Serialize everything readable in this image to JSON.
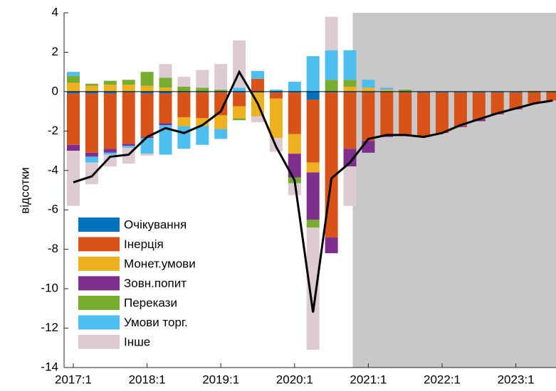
{
  "chart_data": {
    "type": "stacked_bar_line",
    "y_label": "відсотки",
    "categories": [
      "2017:1",
      null,
      null,
      null,
      "2018:1",
      null,
      null,
      null,
      "2019:1",
      null,
      null,
      null,
      "2020:1",
      null,
      null,
      null,
      "2021:1",
      null,
      null,
      null,
      "2022:1",
      null,
      null,
      null,
      "2023:1",
      null,
      null
    ],
    "series": [
      {
        "name": "Очікування",
        "color": "#0072bd",
        "values": [
          -0.1,
          -0.1,
          -0.1,
          -0.05,
          -0.1,
          -0.1,
          -0.05,
          -0.05,
          -0.05,
          -0.05,
          -0.05,
          -0.05,
          -0.05,
          -0.4,
          -0.05,
          -0.05,
          -0.05,
          -0.05,
          -0.05,
          -0.05,
          -0.05,
          -0.05,
          -0.05,
          -0.05,
          -0.05,
          -0.05,
          -0.05
        ]
      },
      {
        "name": "Інерція",
        "color": "#d95319",
        "values": [
          -2.6,
          -3.0,
          -2.8,
          -2.6,
          -2.2,
          -1.5,
          -1.25,
          -1.3,
          -1.15,
          -0.7,
          0.65,
          -0.3,
          -2.1,
          -3.2,
          -7.35,
          -2.85,
          -2.45,
          -2.15,
          -2.15,
          -2.2,
          -2.05,
          -1.7,
          -1.35,
          -1.05,
          -0.8,
          -0.55,
          -0.4
        ]
      },
      {
        "name": "Монет.умови",
        "color": "#edb120",
        "values": [
          0.45,
          0.3,
          0.35,
          0.35,
          0.3,
          0.2,
          -0.45,
          -0.4,
          -0.7,
          -0.6,
          -1.2,
          -2.0,
          -1.0,
          -0.5,
          0,
          0.25,
          0.2,
          0.1,
          0,
          0,
          0,
          0,
          0,
          0,
          0,
          0.05,
          0.05
        ]
      },
      {
        "name": "Зовн.попит",
        "color": "#7e2f8e",
        "values": [
          -0.3,
          -0.2,
          -0.2,
          -0.1,
          -0.05,
          -0.1,
          0,
          0,
          0,
          0,
          0,
          0,
          -1.2,
          -2.4,
          -0.8,
          -0.9,
          -0.6,
          -0.1,
          -0.05,
          -0.05,
          0,
          -0.05,
          -0.1,
          -0.05,
          -0.05,
          0,
          0
        ]
      },
      {
        "name": "Перекази",
        "color": "#77ac30",
        "values": [
          0.35,
          0.1,
          0.2,
          0.25,
          0.7,
          0.5,
          0.25,
          0.2,
          0.1,
          -0.1,
          0,
          0,
          -0.3,
          -0.4,
          0.6,
          0.35,
          0,
          0,
          0.1,
          0,
          0,
          0,
          0,
          0,
          0,
          0,
          0
        ]
      },
      {
        "name": "Умови торг.",
        "color": "#4dbeee",
        "values": [
          0.2,
          -0.3,
          -0.1,
          -0.1,
          -0.8,
          -1.5,
          -1.15,
          -0.95,
          -0.5,
          0.2,
          0.4,
          0.1,
          0.5,
          1.8,
          1.5,
          1.5,
          0.4,
          0.1,
          0,
          0,
          0,
          0,
          0,
          0,
          0,
          0,
          0
        ]
      },
      {
        "name": "Інше",
        "color": "#dccbd1",
        "values": [
          -2.8,
          -1.1,
          -0.6,
          -0.8,
          -0.1,
          0.7,
          0.5,
          0.9,
          1.3,
          2.4,
          -0.3,
          -0.7,
          -0.6,
          -6.2,
          1.7,
          -2.0,
          0,
          0,
          0,
          0,
          0,
          0,
          0,
          0,
          0,
          0,
          0
        ]
      }
    ],
    "line": {
      "color": "#000000",
      "values": [
        -4.6,
        -4.3,
        -3.3,
        -3.2,
        -2.3,
        -1.85,
        -2.1,
        -1.7,
        -1.0,
        1.0,
        -0.6,
        -2.8,
        -4.5,
        -11.2,
        -4.4,
        -3.6,
        -2.4,
        -2.2,
        -2.2,
        -2.3,
        -2.1,
        -1.7,
        -1.4,
        -1.1,
        -0.85,
        -0.6,
        -0.45
      ]
    },
    "forecast_from": "2021:1",
    "forecast_color": "#c8c8c8",
    "ylim": [
      -14,
      4
    ],
    "yticks": [
      4,
      2,
      0,
      -2,
      -4,
      -6,
      -8,
      -10,
      -12,
      -14
    ],
    "legend": "lower left"
  }
}
